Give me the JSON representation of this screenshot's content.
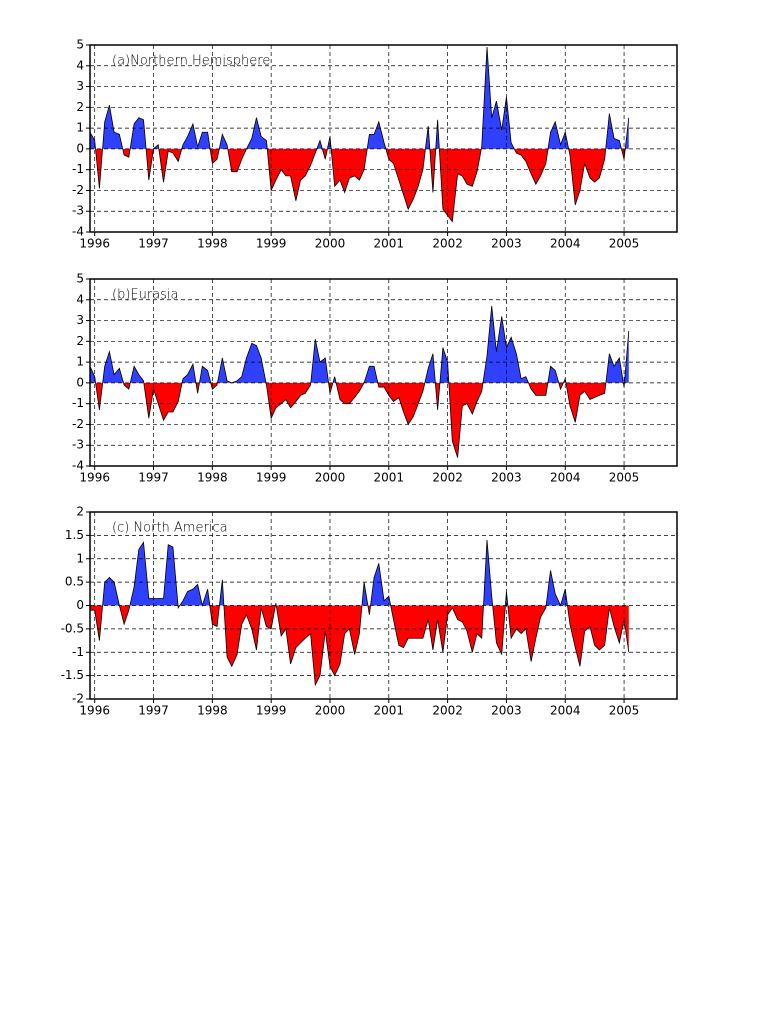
{
  "chart_data": [
    {
      "type": "area",
      "title": "(a)Northern Hemisphere",
      "x": [
        1995.92,
        1996,
        1996.08,
        1996.17,
        1996.25,
        1996.33,
        1996.42,
        1996.5,
        1996.58,
        1996.67,
        1996.75,
        1996.83,
        1996.92,
        1997,
        1997.08,
        1997.17,
        1997.25,
        1997.33,
        1997.42,
        1997.5,
        1997.58,
        1997.67,
        1997.75,
        1997.83,
        1997.92,
        1998,
        1998.08,
        1998.17,
        1998.25,
        1998.33,
        1998.42,
        1998.5,
        1998.58,
        1998.67,
        1998.75,
        1998.83,
        1998.92,
        1999,
        1999.08,
        1999.17,
        1999.25,
        1999.33,
        1999.42,
        1999.5,
        1999.58,
        1999.67,
        1999.75,
        1999.83,
        1999.92,
        2000,
        2000.08,
        2000.17,
        2000.25,
        2000.33,
        2000.42,
        2000.5,
        2000.58,
        2000.67,
        2000.75,
        2000.83,
        2000.92,
        2001,
        2001.08,
        2001.17,
        2001.25,
        2001.33,
        2001.42,
        2001.5,
        2001.58,
        2001.67,
        2001.75,
        2001.83,
        2001.92,
        2002,
        2002.08,
        2002.17,
        2002.25,
        2002.33,
        2002.42,
        2002.5,
        2002.58,
        2002.67,
        2002.75,
        2002.83,
        2002.92,
        2003,
        2003.08,
        2003.17,
        2003.25,
        2003.33,
        2003.42,
        2003.5,
        2003.58,
        2003.67,
        2003.75,
        2003.83,
        2003.92,
        2004,
        2004.08,
        2004.17,
        2004.25,
        2004.33,
        2004.42,
        2004.5,
        2004.58,
        2004.67,
        2004.75,
        2004.83,
        2004.92,
        2005,
        2005.08
      ],
      "values": [
        0.8,
        0.4,
        -1.9,
        1.3,
        2.1,
        0.8,
        0.7,
        -0.3,
        -0.4,
        1.2,
        1.5,
        1.4,
        -1.5,
        0.0,
        0.2,
        -1.6,
        -0.1,
        -0.2,
        -0.6,
        0.2,
        0.6,
        1.2,
        0.1,
        0.8,
        0.8,
        -0.7,
        -0.5,
        0.7,
        0.2,
        -1.1,
        -1.1,
        -0.5,
        0.0,
        0.5,
        1.5,
        0.6,
        0.4,
        -2.0,
        -1.5,
        -1.0,
        -1.3,
        -1.3,
        -2.5,
        -1.5,
        -1.3,
        -0.8,
        -0.2,
        0.4,
        -0.5,
        0.6,
        -1.8,
        -1.5,
        -2.1,
        -1.4,
        -1.3,
        -1.5,
        -1.0,
        0.7,
        0.7,
        1.3,
        0.3,
        -0.5,
        -0.7,
        -1.5,
        -2.2,
        -2.9,
        -2.4,
        -1.8,
        -1.0,
        1.1,
        -2.1,
        1.4,
        -2.9,
        -3.2,
        -3.5,
        -1.2,
        -1.3,
        -1.7,
        -1.8,
        -1.1,
        0.1,
        4.9,
        1.5,
        2.3,
        0.9,
        2.5,
        0.3,
        -0.2,
        -0.3,
        -0.6,
        -1.2,
        -1.7,
        -1.3,
        -0.7,
        0.8,
        1.3,
        0.2,
        0.8,
        -0.3,
        -2.7,
        -2.0,
        -0.7,
        -1.4,
        -1.6,
        -1.4,
        -0.5,
        1.7,
        0.5,
        0.4,
        -0.5,
        1.5
      ],
      "positive_color": "#3040ff",
      "negative_color": "#ff0000",
      "xlim": [
        1995.92,
        2005.9
      ],
      "xticks": [
        1996,
        1997,
        1998,
        1999,
        2000,
        2001,
        2002,
        2003,
        2004,
        2005
      ],
      "ylim": [
        -4,
        5
      ],
      "yticks": [
        -4,
        -3,
        -2,
        -1,
        0,
        1,
        2,
        3,
        4,
        5
      ],
      "grid": true
    },
    {
      "type": "area",
      "title": "(b)Eurasia",
      "x": [
        1995.92,
        1996,
        1996.08,
        1996.17,
        1996.25,
        1996.33,
        1996.42,
        1996.5,
        1996.58,
        1996.67,
        1996.75,
        1996.83,
        1996.92,
        1997,
        1997.08,
        1997.17,
        1997.25,
        1997.33,
        1997.42,
        1997.5,
        1997.58,
        1997.67,
        1997.75,
        1997.83,
        1997.92,
        1998,
        1998.08,
        1998.17,
        1998.25,
        1998.33,
        1998.42,
        1998.5,
        1998.58,
        1998.67,
        1998.75,
        1998.83,
        1998.92,
        1999,
        1999.08,
        1999.17,
        1999.25,
        1999.33,
        1999.42,
        1999.5,
        1999.58,
        1999.67,
        1999.75,
        1999.83,
        1999.92,
        2000,
        2000.08,
        2000.17,
        2000.25,
        2000.33,
        2000.42,
        2000.5,
        2000.58,
        2000.67,
        2000.75,
        2000.83,
        2000.92,
        2001,
        2001.08,
        2001.17,
        2001.25,
        2001.33,
        2001.42,
        2001.5,
        2001.58,
        2001.67,
        2001.75,
        2001.83,
        2001.92,
        2002,
        2002.08,
        2002.17,
        2002.25,
        2002.33,
        2002.42,
        2002.5,
        2002.58,
        2002.67,
        2002.75,
        2002.83,
        2002.92,
        2003,
        2003.08,
        2003.17,
        2003.25,
        2003.33,
        2003.42,
        2003.5,
        2003.58,
        2003.67,
        2003.75,
        2003.83,
        2003.92,
        2004,
        2004.08,
        2004.17,
        2004.25,
        2004.33,
        2004.42,
        2004.5,
        2004.58,
        2004.67,
        2004.75,
        2004.83,
        2004.92,
        2005,
        2005.08
      ],
      "values": [
        0.8,
        0.3,
        -1.3,
        0.8,
        1.5,
        0.4,
        0.7,
        -0.1,
        -0.3,
        0.8,
        0.4,
        0.1,
        -1.7,
        -0.3,
        -1.0,
        -1.8,
        -1.4,
        -1.4,
        -0.9,
        0.2,
        0.4,
        0.9,
        -0.5,
        0.8,
        0.6,
        -0.3,
        -0.1,
        1.2,
        0.1,
        0.0,
        0.1,
        0.3,
        1.2,
        1.9,
        1.8,
        1.2,
        -0.1,
        -1.7,
        -1.2,
        -1.0,
        -0.8,
        -1.2,
        -0.9,
        -0.6,
        -0.5,
        -0.1,
        2.1,
        1.0,
        1.2,
        -0.5,
        0.3,
        -0.8,
        -1.0,
        -1.0,
        -0.7,
        -0.4,
        0.0,
        0.8,
        0.8,
        -0.2,
        -0.2,
        -0.6,
        -0.9,
        -0.7,
        -1.4,
        -2.0,
        -1.6,
        -1.0,
        -0.4,
        0.7,
        1.4,
        -1.3,
        1.7,
        1.0,
        -2.8,
        -3.6,
        -1.1,
        -1.0,
        -1.5,
        -0.9,
        -0.4,
        1.3,
        3.7,
        1.5,
        3.2,
        1.7,
        2.2,
        1.4,
        0.2,
        0.3,
        -0.3,
        -0.6,
        -0.6,
        -0.6,
        0.8,
        0.6,
        -0.3,
        0.2,
        -1.1,
        -1.9,
        -0.6,
        -0.4,
        -0.8,
        -0.7,
        -0.6,
        -0.5,
        1.4,
        0.8,
        1.2,
        -0.2,
        2.5
      ],
      "positive_color": "#3040ff",
      "negative_color": "#ff0000",
      "xlim": [
        1995.92,
        2005.9
      ],
      "xticks": [
        1996,
        1997,
        1998,
        1999,
        2000,
        2001,
        2002,
        2003,
        2004,
        2005
      ],
      "ylim": [
        -4,
        5
      ],
      "yticks": [
        -4,
        -3,
        -2,
        -1,
        0,
        1,
        2,
        3,
        4,
        5
      ],
      "grid": true
    },
    {
      "type": "area",
      "title": "(c) North America",
      "x": [
        1995.92,
        1996,
        1996.08,
        1996.17,
        1996.25,
        1996.33,
        1996.42,
        1996.5,
        1996.58,
        1996.67,
        1996.75,
        1996.83,
        1996.92,
        1997,
        1997.08,
        1997.17,
        1997.25,
        1997.33,
        1997.42,
        1997.5,
        1997.58,
        1997.67,
        1997.75,
        1997.83,
        1997.92,
        1998,
        1998.08,
        1998.17,
        1998.25,
        1998.33,
        1998.42,
        1998.5,
        1998.58,
        1998.67,
        1998.75,
        1998.83,
        1998.92,
        1999,
        1999.08,
        1999.17,
        1999.25,
        1999.33,
        1999.42,
        1999.5,
        1999.58,
        1999.67,
        1999.75,
        1999.83,
        1999.92,
        2000,
        2000.08,
        2000.17,
        2000.25,
        2000.33,
        2000.42,
        2000.5,
        2000.58,
        2000.67,
        2000.75,
        2000.83,
        2000.92,
        2001,
        2001.08,
        2001.17,
        2001.25,
        2001.33,
        2001.42,
        2001.5,
        2001.58,
        2001.67,
        2001.75,
        2001.83,
        2001.92,
        2002,
        2002.08,
        2002.17,
        2002.25,
        2002.33,
        2002.42,
        2002.5,
        2002.58,
        2002.67,
        2002.75,
        2002.83,
        2002.92,
        2003,
        2003.08,
        2003.17,
        2003.25,
        2003.33,
        2003.42,
        2003.5,
        2003.58,
        2003.67,
        2003.75,
        2003.83,
        2003.92,
        2004,
        2004.08,
        2004.17,
        2004.25,
        2004.33,
        2004.42,
        2004.5,
        2004.58,
        2004.67,
        2004.75,
        2004.83,
        2004.92,
        2005,
        2005.08
      ],
      "values": [
        -0.1,
        -0.1,
        -0.75,
        0.5,
        0.6,
        0.5,
        0.0,
        -0.4,
        -0.1,
        0.4,
        1.2,
        1.35,
        0.15,
        0.15,
        0.15,
        0.15,
        1.3,
        1.25,
        -0.05,
        0.1,
        0.3,
        0.35,
        0.45,
        0.0,
        0.35,
        -0.4,
        -0.45,
        0.55,
        -1.1,
        -1.3,
        -1.05,
        -0.4,
        -0.2,
        -0.5,
        -0.95,
        -0.05,
        -0.45,
        -0.5,
        0.05,
        -0.65,
        -0.5,
        -1.25,
        -0.9,
        -0.8,
        -0.7,
        -0.6,
        -1.7,
        -1.5,
        -0.55,
        -1.3,
        -1.5,
        -1.25,
        -0.6,
        -0.5,
        -1.05,
        -0.6,
        0.5,
        -0.2,
        0.6,
        0.9,
        0.1,
        0.2,
        -0.3,
        -0.85,
        -0.9,
        -0.7,
        -0.7,
        -0.7,
        -0.7,
        -0.3,
        -0.95,
        -0.3,
        -1.0,
        -0.2,
        -0.05,
        -0.3,
        -0.35,
        -0.55,
        -1.0,
        -0.6,
        -0.7,
        1.4,
        0.2,
        -0.8,
        -1.05,
        0.3,
        -0.7,
        -0.5,
        -0.6,
        -0.5,
        -1.2,
        -0.7,
        -0.25,
        -0.05,
        0.75,
        0.25,
        0.0,
        0.35,
        -0.4,
        -0.9,
        -1.3,
        -0.55,
        -0.45,
        -0.85,
        -0.95,
        -0.85,
        -0.05,
        -0.45,
        -0.8,
        -0.3,
        -1.0
      ],
      "positive_color": "#3040ff",
      "negative_color": "#ff0000",
      "xlim": [
        1995.92,
        2005.9
      ],
      "xticks": [
        1996,
        1997,
        1998,
        1999,
        2000,
        2001,
        2002,
        2003,
        2004,
        2005
      ],
      "ylim": [
        -2,
        2
      ],
      "yticks": [
        -2,
        -1.5,
        -1,
        -0.5,
        0,
        0.5,
        1,
        1.5,
        2
      ],
      "grid": true
    }
  ]
}
